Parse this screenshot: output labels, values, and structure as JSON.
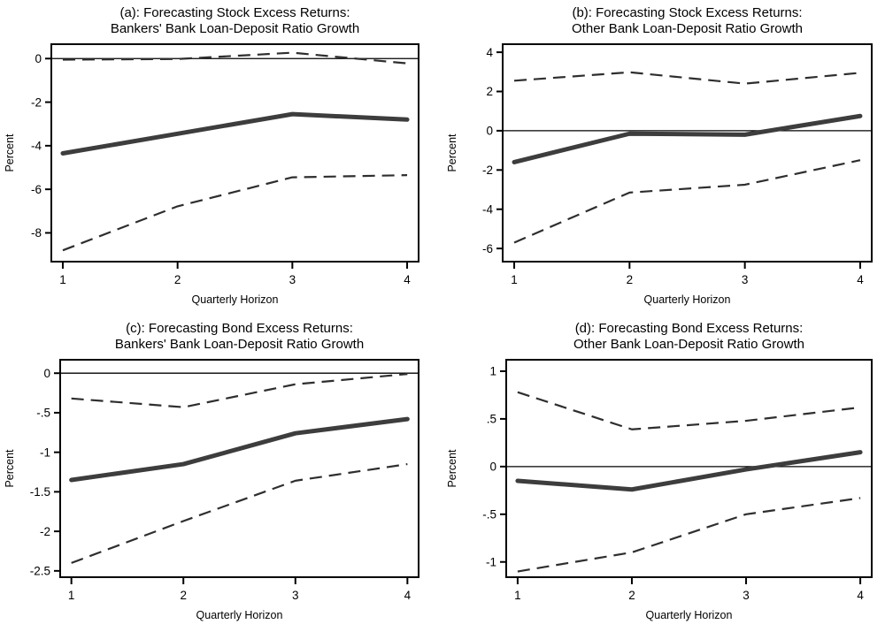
{
  "figure": {
    "background": "#ffffff",
    "axis_color": "#000000",
    "solid_line_color": "#3d3d3d",
    "dashed_line_color": "#2e2e2e",
    "zero_line_color": "#000000"
  },
  "chart_data": [
    {
      "id": "a",
      "type": "line",
      "title_line1": "(a): Forecasting Stock Excess Returns:",
      "title_line2": "Bankers' Bank Loan-Deposit Ratio Growth",
      "xlabel": "Quarterly Horizon",
      "ylabel": "Percent",
      "x": [
        1,
        2,
        3,
        4
      ],
      "xlim": [
        0.9,
        4.1
      ],
      "xtick_labels": [
        "1",
        "2",
        "3",
        "4"
      ],
      "ylim": [
        -9.32,
        0.66
      ],
      "yticks": [
        0,
        -2,
        -4,
        -6,
        -8
      ],
      "ytick_labels": [
        "0",
        "-2",
        "-4",
        "-6",
        "-8"
      ],
      "zero_line": true,
      "grid": false,
      "legend": "none",
      "series": [
        {
          "name": "point-estimate",
          "style": "solid-thick",
          "values": [
            -4.35,
            -3.45,
            -2.55,
            -2.8
          ]
        },
        {
          "name": "upper-confidence-band",
          "style": "dashed",
          "values": [
            -0.05,
            -0.02,
            0.27,
            -0.22
          ]
        },
        {
          "name": "lower-confidence-band",
          "style": "dashed",
          "values": [
            -8.8,
            -6.78,
            -5.45,
            -5.35
          ]
        }
      ]
    },
    {
      "id": "b",
      "type": "line",
      "title_line1": "(b): Forecasting Stock Excess Returns:",
      "title_line2": "Other Bank Loan-Deposit Ratio Growth",
      "xlabel": "Quarterly Horizon",
      "ylabel": "Percent",
      "x": [
        1,
        2,
        3,
        4
      ],
      "xlim": [
        0.9,
        4.1
      ],
      "xtick_labels": [
        "1",
        "2",
        "3",
        "4"
      ],
      "ylim": [
        -6.67,
        4.41
      ],
      "yticks": [
        4,
        2,
        0,
        -2,
        -4,
        -6
      ],
      "ytick_labels": [
        "4",
        "2",
        "0",
        "-2",
        "-4",
        "-6"
      ],
      "zero_line": true,
      "grid": false,
      "legend": "none",
      "series": [
        {
          "name": "point-estimate",
          "style": "solid-thick",
          "values": [
            -1.6,
            -0.15,
            -0.2,
            0.75
          ]
        },
        {
          "name": "upper-confidence-band",
          "style": "dashed",
          "values": [
            2.55,
            2.98,
            2.4,
            2.95
          ]
        },
        {
          "name": "lower-confidence-band",
          "style": "dashed",
          "values": [
            -5.7,
            -3.15,
            -2.75,
            -1.5
          ]
        }
      ]
    },
    {
      "id": "c",
      "type": "line",
      "title_line1": "(c): Forecasting Bond Excess Returns:",
      "title_line2": "Bankers' Bank Loan-Deposit Ratio Growth",
      "xlabel": "Quarterly Horizon",
      "ylabel": "Percent",
      "x": [
        1,
        2,
        3,
        4
      ],
      "xlim": [
        0.9,
        4.1
      ],
      "xtick_labels": [
        "1",
        "2",
        "3",
        "4"
      ],
      "ylim": [
        -2.58,
        0.17
      ],
      "yticks": [
        0,
        -0.5,
        -1,
        -1.5,
        -2,
        -2.5
      ],
      "ytick_labels": [
        "0",
        "-.5",
        "-1",
        "-1.5",
        "-2",
        "-2.5"
      ],
      "zero_line": true,
      "grid": false,
      "legend": "none",
      "series": [
        {
          "name": "point-estimate",
          "style": "solid-thick",
          "values": [
            -1.35,
            -1.15,
            -0.76,
            -0.58
          ]
        },
        {
          "name": "upper-confidence-band",
          "style": "dashed",
          "values": [
            -0.32,
            -0.43,
            -0.14,
            -0.01
          ]
        },
        {
          "name": "lower-confidence-band",
          "style": "dashed",
          "values": [
            -2.4,
            -1.87,
            -1.36,
            -1.15
          ]
        }
      ]
    },
    {
      "id": "d",
      "type": "line",
      "title_line1": "(d): Forecasting Bond Excess Returns:",
      "title_line2": "Other Bank Loan-Deposit Ratio Growth",
      "xlabel": "Quarterly Horizon",
      "ylabel": "Percent",
      "x": [
        1,
        2,
        3,
        4
      ],
      "xlim": [
        0.9,
        4.1
      ],
      "xtick_labels": [
        "1",
        "2",
        "3",
        "4"
      ],
      "ylim": [
        -1.16,
        1.12
      ],
      "yticks": [
        1,
        0.5,
        0,
        -0.5,
        -1
      ],
      "ytick_labels": [
        "1",
        ".5",
        "0",
        "-.5",
        "-1"
      ],
      "zero_line": true,
      "grid": false,
      "legend": "none",
      "series": [
        {
          "name": "point-estimate",
          "style": "solid-thick",
          "values": [
            -0.15,
            -0.24,
            -0.03,
            0.15
          ]
        },
        {
          "name": "upper-confidence-band",
          "style": "dashed",
          "values": [
            0.78,
            0.39,
            0.48,
            0.62
          ]
        },
        {
          "name": "lower-confidence-band",
          "style": "dashed",
          "values": [
            -1.1,
            -0.9,
            -0.5,
            -0.33
          ]
        }
      ]
    }
  ]
}
